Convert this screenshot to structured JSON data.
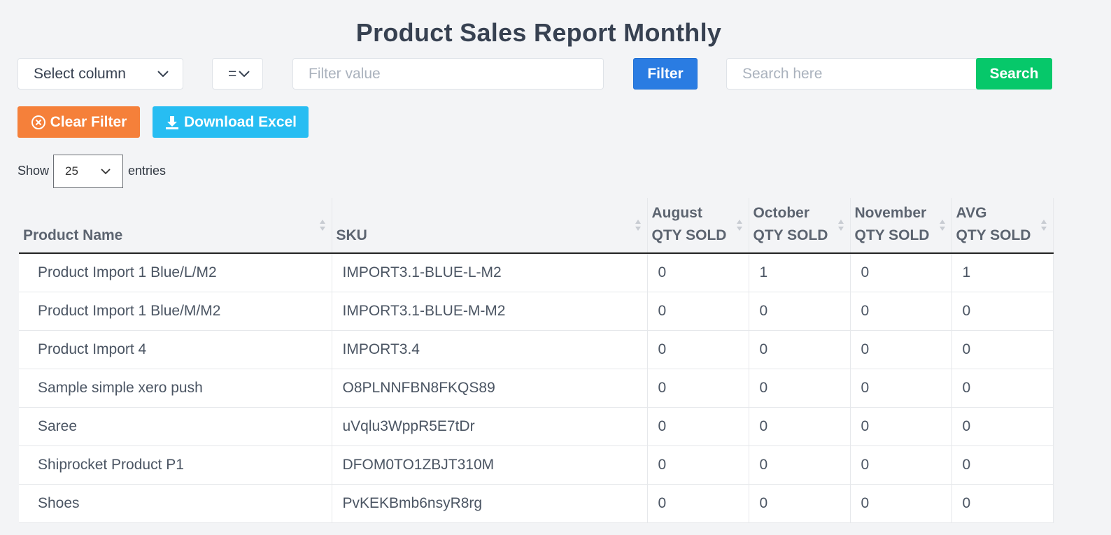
{
  "page": {
    "title": "Product Sales Report Monthly"
  },
  "filters": {
    "column_select": {
      "value": "Select column",
      "icon": "chevron-down-icon"
    },
    "operator_select": {
      "value": "=",
      "icon": "chevron-down-icon"
    },
    "filter_value": {
      "placeholder": "Filter value",
      "value": ""
    },
    "filter_button": {
      "label": "Filter",
      "color": "#2a7ce2"
    },
    "search": {
      "placeholder": "Search here",
      "value": ""
    },
    "search_button": {
      "label": "Search",
      "color": "#06c86a"
    }
  },
  "actions": {
    "clear_filter": {
      "label": "Clear Filter",
      "icon": "circle-x-icon",
      "color": "#f5803a"
    },
    "download_excel": {
      "label": "Download Excel",
      "icon": "download-icon",
      "color": "#27bdf2"
    }
  },
  "entries": {
    "show_label": "Show",
    "value": "25",
    "suffix_label": "entries"
  },
  "table": {
    "columns": [
      {
        "line1": "",
        "line2": "Product Name"
      },
      {
        "line1": "",
        "line2": "SKU"
      },
      {
        "line1": "August",
        "line2": "QTY SOLD"
      },
      {
        "line1": "October",
        "line2": "QTY SOLD"
      },
      {
        "line1": "November",
        "line2": "QTY SOLD"
      },
      {
        "line1": "AVG",
        "line2": "QTY SOLD"
      }
    ],
    "rows": [
      [
        "Product Import 1 Blue/L/M2",
        "IMPORT3.1-BLUE-L-M2",
        "0",
        "1",
        "0",
        "1"
      ],
      [
        "Product Import 1 Blue/M/M2",
        "IMPORT3.1-BLUE-M-M2",
        "0",
        "0",
        "0",
        "0"
      ],
      [
        "Product Import 4",
        "IMPORT3.4",
        "0",
        "0",
        "0",
        "0"
      ],
      [
        "Sample simple xero push",
        "O8PLNNFBN8FKQS89",
        "0",
        "0",
        "0",
        "0"
      ],
      [
        "Saree",
        "uVqlu3WppR5E7tDr",
        "0",
        "0",
        "0",
        "0"
      ],
      [
        "Shiprocket Product P1",
        "DFOM0TO1ZBJT310M",
        "0",
        "0",
        "0",
        "0"
      ],
      [
        "Shoes",
        "PvKEKBmb6nsyR8rg",
        "0",
        "0",
        "0",
        "0"
      ]
    ]
  }
}
